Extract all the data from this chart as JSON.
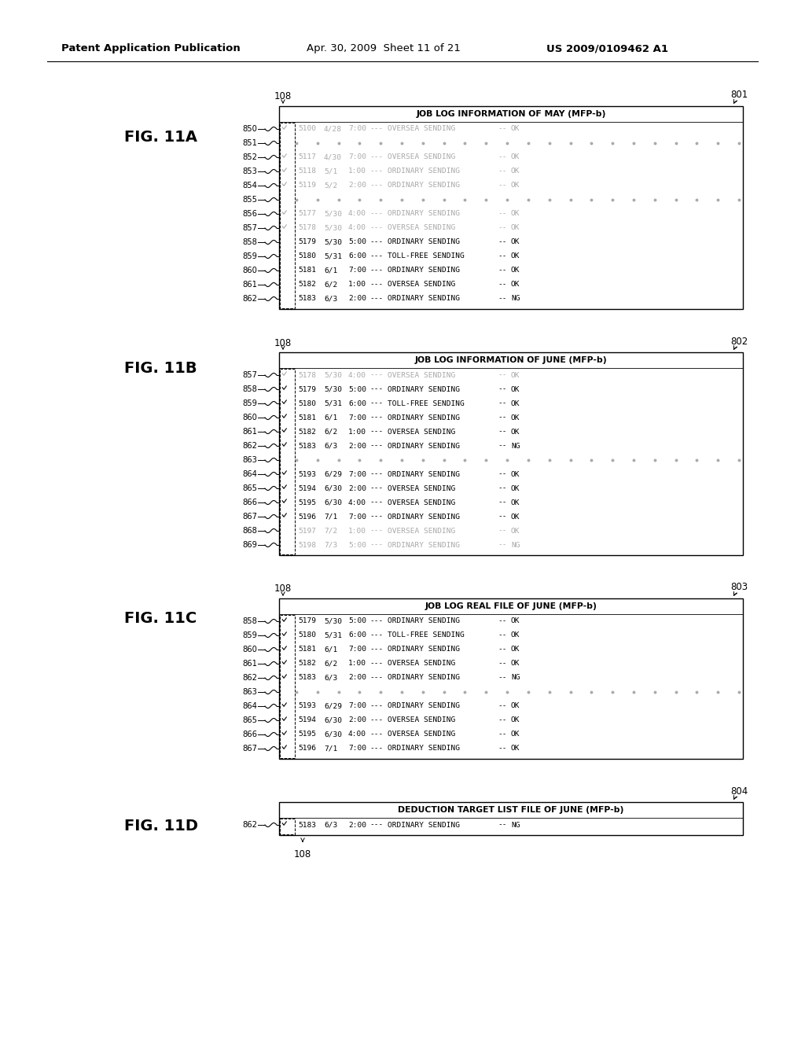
{
  "bg_color": "#ffffff",
  "box801_title": "JOB LOG INFORMATION OF MAY (MFP-b)",
  "box802_title": "JOB LOG INFORMATION OF JUNE (MFP-b)",
  "box803_title": "JOB LOG REAL FILE OF JUNE (MFP-b)",
  "box804_title": "DEDUCTION TARGET LIST FILE OF JUNE (MFP-b)",
  "box801_rows": [
    {
      "check": true,
      "gray": true,
      "num": "5100",
      "date": "4/28",
      "time": "7:00",
      "dash": "---",
      "type": "OVERSEA SENDING",
      "dd": "--",
      "result": "OK"
    },
    {
      "check": false,
      "gray": true,
      "num": "",
      "date": "",
      "time": "",
      "dash": "",
      "type": "dotted_line",
      "dd": "",
      "result": ""
    },
    {
      "check": true,
      "gray": true,
      "num": "5117",
      "date": "4/30",
      "time": "7:00",
      "dash": "---",
      "type": "OVERSEA SENDING",
      "dd": "--",
      "result": "OK"
    },
    {
      "check": true,
      "gray": true,
      "num": "5118",
      "date": "5/1",
      "time": "1:00",
      "dash": "---",
      "type": "ORDINARY SENDING",
      "dd": "--",
      "result": "OK"
    },
    {
      "check": true,
      "gray": true,
      "num": "5119",
      "date": "5/2",
      "time": "2:00",
      "dash": "---",
      "type": "ORDINARY SENDING",
      "dd": "--",
      "result": "OK"
    },
    {
      "check": false,
      "gray": true,
      "num": "",
      "date": "",
      "time": "",
      "dash": "",
      "type": "dotted_line",
      "dd": "",
      "result": ""
    },
    {
      "check": true,
      "gray": true,
      "num": "5177",
      "date": "5/30",
      "time": "4:00",
      "dash": "---",
      "type": "ORDINARY SENDING",
      "dd": "--",
      "result": "OK"
    },
    {
      "check": true,
      "gray": true,
      "num": "5178",
      "date": "5/30",
      "time": "4:00",
      "dash": "---",
      "type": "OVERSEA SENDING",
      "dd": "--",
      "result": "OK"
    },
    {
      "check": false,
      "gray": false,
      "num": "5179",
      "date": "5/30",
      "time": "5:00",
      "dash": "---",
      "type": "ORDINARY SENDING",
      "dd": "--",
      "result": "OK"
    },
    {
      "check": false,
      "gray": false,
      "num": "5180",
      "date": "5/31",
      "time": "6:00",
      "dash": "---",
      "type": "TOLL-FREE SENDING",
      "dd": "--",
      "result": "OK"
    },
    {
      "check": false,
      "gray": false,
      "num": "5181",
      "date": "6/1",
      "time": "7:00",
      "dash": "---",
      "type": "ORDINARY SENDING",
      "dd": "--",
      "result": "OK"
    },
    {
      "check": false,
      "gray": false,
      "num": "5182",
      "date": "6/2",
      "time": "1:00",
      "dash": "---",
      "type": "OVERSEA SENDING",
      "dd": "--",
      "result": "OK"
    },
    {
      "check": false,
      "gray": false,
      "num": "5183",
      "date": "6/3",
      "time": "2:00",
      "dash": "---",
      "type": "ORDINARY SENDING",
      "dd": "--",
      "result": "NG"
    }
  ],
  "box801_labels": [
    "850",
    "851",
    "852",
    "853",
    "854",
    "855",
    "856",
    "857",
    "858",
    "859",
    "860",
    "861",
    "862"
  ],
  "box802_rows": [
    {
      "check": true,
      "gray": true,
      "num": "5178",
      "date": "5/30",
      "time": "4:00",
      "dash": "---",
      "type": "OVERSEA SENDING",
      "dd": "--",
      "result": "OK"
    },
    {
      "check": true,
      "gray": false,
      "num": "5179",
      "date": "5/30",
      "time": "5:00",
      "dash": "---",
      "type": "ORDINARY SENDING",
      "dd": "--",
      "result": "OK"
    },
    {
      "check": true,
      "gray": false,
      "num": "5180",
      "date": "5/31",
      "time": "6:00",
      "dash": "---",
      "type": "TOLL-FREE SENDING",
      "dd": "--",
      "result": "OK"
    },
    {
      "check": true,
      "gray": false,
      "num": "5181",
      "date": "6/1",
      "time": "7:00",
      "dash": "---",
      "type": "ORDINARY SENDING",
      "dd": "--",
      "result": "OK"
    },
    {
      "check": true,
      "gray": false,
      "num": "5182",
      "date": "6/2",
      "time": "1:00",
      "dash": "---",
      "type": "OVERSEA SENDING",
      "dd": "--",
      "result": "OK"
    },
    {
      "check": true,
      "gray": false,
      "num": "5183",
      "date": "6/3",
      "time": "2:00",
      "dash": "---",
      "type": "ORDINARY SENDING",
      "dd": "--",
      "result": "NG"
    },
    {
      "check": false,
      "gray": false,
      "num": "",
      "date": "",
      "time": "",
      "dash": "",
      "type": "dotted_line",
      "dd": "",
      "result": ""
    },
    {
      "check": true,
      "gray": false,
      "num": "5193",
      "date": "6/29",
      "time": "7:00",
      "dash": "---",
      "type": "ORDINARY SENDING",
      "dd": "--",
      "result": "OK"
    },
    {
      "check": true,
      "gray": false,
      "num": "5194",
      "date": "6/30",
      "time": "2:00",
      "dash": "---",
      "type": "OVERSEA SENDING",
      "dd": "--",
      "result": "OK"
    },
    {
      "check": true,
      "gray": false,
      "num": "5195",
      "date": "6/30",
      "time": "4:00",
      "dash": "---",
      "type": "OVERSEA SENDING",
      "dd": "--",
      "result": "OK"
    },
    {
      "check": true,
      "gray": false,
      "num": "5196",
      "date": "7/1",
      "time": "7:00",
      "dash": "---",
      "type": "ORDINARY SENDING",
      "dd": "--",
      "result": "OK"
    },
    {
      "check": false,
      "gray": true,
      "num": "5197",
      "date": "7/2",
      "time": "1:00",
      "dash": "---",
      "type": "OVERSEA SENDING",
      "dd": "--",
      "result": "OK"
    },
    {
      "check": false,
      "gray": true,
      "num": "5198",
      "date": "7/3",
      "time": "5:00",
      "dash": "---",
      "type": "ORDINARY SENDING",
      "dd": "--",
      "result": "NG"
    }
  ],
  "box802_labels": [
    "857",
    "858",
    "859",
    "860",
    "861",
    "862",
    "863",
    "864",
    "865",
    "866",
    "867",
    "868",
    "869"
  ],
  "box803_rows": [
    {
      "check": true,
      "gray": false,
      "num": "5179",
      "date": "5/30",
      "time": "5:00",
      "dash": "---",
      "type": "ORDINARY SENDING",
      "dd": "--",
      "result": "OK"
    },
    {
      "check": true,
      "gray": false,
      "num": "5180",
      "date": "5/31",
      "time": "6:00",
      "dash": "---",
      "type": "TOLL-FREE SENDING",
      "dd": "--",
      "result": "OK"
    },
    {
      "check": true,
      "gray": false,
      "num": "5181",
      "date": "6/1",
      "time": "7:00",
      "dash": "---",
      "type": "ORDINARY SENDING",
      "dd": "--",
      "result": "OK"
    },
    {
      "check": true,
      "gray": false,
      "num": "5182",
      "date": "6/2",
      "time": "1:00",
      "dash": "---",
      "type": "OVERSEA SENDING",
      "dd": "--",
      "result": "OK"
    },
    {
      "check": true,
      "gray": false,
      "num": "5183",
      "date": "6/3",
      "time": "2:00",
      "dash": "---",
      "type": "ORDINARY SENDING",
      "dd": "--",
      "result": "NG"
    },
    {
      "check": false,
      "gray": false,
      "num": "",
      "date": "",
      "time": "",
      "dash": "",
      "type": "dotted_line",
      "dd": "",
      "result": ""
    },
    {
      "check": true,
      "gray": false,
      "num": "5193",
      "date": "6/29",
      "time": "7:00",
      "dash": "---",
      "type": "ORDINARY SENDING",
      "dd": "--",
      "result": "OK"
    },
    {
      "check": true,
      "gray": false,
      "num": "5194",
      "date": "6/30",
      "time": "2:00",
      "dash": "---",
      "type": "OVERSEA SENDING",
      "dd": "--",
      "result": "OK"
    },
    {
      "check": true,
      "gray": false,
      "num": "5195",
      "date": "6/30",
      "time": "4:00",
      "dash": "---",
      "type": "OVERSEA SENDING",
      "dd": "--",
      "result": "OK"
    },
    {
      "check": true,
      "gray": false,
      "num": "5196",
      "date": "7/1",
      "time": "7:00",
      "dash": "---",
      "type": "ORDINARY SENDING",
      "dd": "--",
      "result": "OK"
    }
  ],
  "box803_labels": [
    "858",
    "859",
    "860",
    "861",
    "862",
    "863",
    "864",
    "865",
    "866",
    "867"
  ],
  "box804_rows": [
    {
      "check": true,
      "gray": false,
      "num": "5183",
      "date": "6/3",
      "time": "2:00",
      "dash": "---",
      "type": "ORDINARY SENDING",
      "dd": "--",
      "result": "NG"
    }
  ],
  "box804_labels": [
    "862"
  ]
}
